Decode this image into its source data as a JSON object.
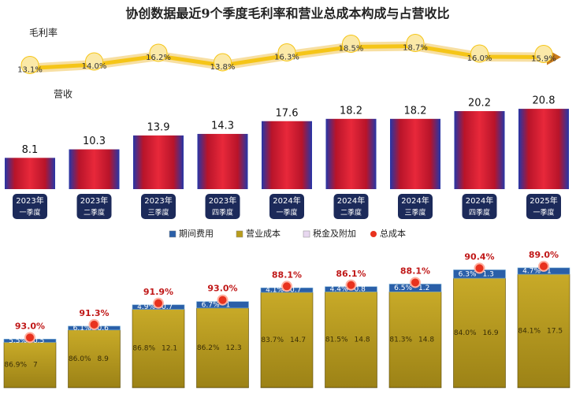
{
  "chart_data": {
    "type": "bar",
    "title": "协创数据最近9个季度毛利率和营业总成本构成与占营收比",
    "categories": [
      [
        "2023年",
        "一季度"
      ],
      [
        "2023年",
        "二季度"
      ],
      [
        "2023年",
        "三季度"
      ],
      [
        "2023年",
        "四季度"
      ],
      [
        "2024年",
        "一季度"
      ],
      [
        "2024年",
        "二季度"
      ],
      [
        "2024年",
        "三季度"
      ],
      [
        "2024年",
        "四季度"
      ],
      [
        "2025年",
        "一季度"
      ]
    ],
    "margin": {
      "name": "毛利率",
      "color": "#f5c518",
      "values": [
        13.1,
        14.0,
        16.2,
        13.8,
        16.3,
        18.5,
        18.7,
        16.0,
        15.9
      ],
      "value_labels": [
        "13.1%",
        "14.0%",
        "16.2%",
        "13.8%",
        "16.3%",
        "18.5%",
        "18.7%",
        "16.0%",
        "15.9%"
      ]
    },
    "revenue": {
      "name": "营收",
      "color": "#d0182a",
      "values": [
        8.1,
        10.3,
        13.9,
        14.3,
        17.6,
        18.2,
        18.2,
        20.2,
        20.8
      ]
    },
    "cost_series": [
      {
        "name": "期间费用",
        "color": "#2a5fa8",
        "values": [
          0.5,
          0.6,
          0.7,
          1.0,
          0.7,
          0.8,
          1.2,
          1.3,
          1.0
        ],
        "ratio_labels": [
          "5.5%",
          "6.1%",
          "4.9%",
          "6.7%",
          "4.1%",
          "4.4%",
          "6.5%",
          "6.3%",
          "4.7%"
        ]
      },
      {
        "name": "营业成本",
        "color": "#b89c1c",
        "values": [
          7.0,
          8.9,
          12.1,
          12.3,
          14.7,
          14.8,
          14.8,
          16.9,
          17.5
        ],
        "ratio_labels": [
          "86.9%",
          "86.0%",
          "86.8%",
          "86.2%",
          "83.7%",
          "81.5%",
          "81.3%",
          "84.0%",
          "84.1%"
        ]
      },
      {
        "name": "税金及附加",
        "color": "#e8d8f0",
        "values": [
          0.02,
          0.03,
          0.03,
          0.03,
          0.05,
          0.04,
          0.04,
          0.04,
          0.05
        ],
        "ratio_labels": [
          "0.3%",
          "0.3%",
          "0.2%",
          "0.2%",
          "0.3%",
          "0.2%",
          "0.2%",
          "0.2%",
          "0.3%"
        ]
      }
    ],
    "total_cost": {
      "name": "总成本",
      "color": "#e8321e",
      "values": [
        93.0,
        91.3,
        91.9,
        93.0,
        88.1,
        86.1,
        88.1,
        90.4,
        89.0
      ],
      "value_labels": [
        "93.0%",
        "91.3%",
        "91.9%",
        "93.0%",
        "88.1%",
        "86.1%",
        "88.1%",
        "90.4%",
        "89.0%"
      ]
    }
  }
}
